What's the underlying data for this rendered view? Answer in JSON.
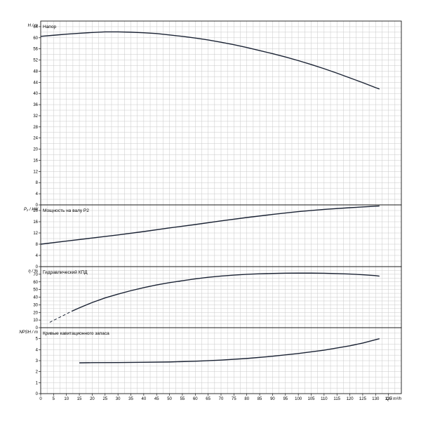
{
  "chart_data": {
    "type": "line",
    "xlabel": "Q / m³/h",
    "x_ticks": [
      0,
      5,
      10,
      15,
      20,
      25,
      30,
      35,
      40,
      45,
      50,
      55,
      60,
      65,
      70,
      75,
      80,
      85,
      90,
      95,
      100,
      105,
      110,
      115,
      120,
      125,
      130,
      135
    ],
    "xlim": [
      0,
      140
    ],
    "panels": [
      {
        "key": "head",
        "title": "Напор",
        "ylabel": "H / m",
        "ylim": [
          0,
          66
        ],
        "y_ticks": [
          0,
          4,
          8,
          12,
          16,
          20,
          24,
          28,
          32,
          36,
          40,
          44,
          48,
          52,
          56,
          60,
          64
        ],
        "dashed": false,
        "points": [
          [
            0,
            60.5
          ],
          [
            5,
            60.9
          ],
          [
            10,
            61.3
          ],
          [
            15,
            61.6
          ],
          [
            20,
            61.9
          ],
          [
            25,
            62.1
          ],
          [
            30,
            62.1
          ],
          [
            35,
            62.0
          ],
          [
            40,
            61.8
          ],
          [
            45,
            61.5
          ],
          [
            50,
            61.0
          ],
          [
            55,
            60.5
          ],
          [
            60,
            59.9
          ],
          [
            65,
            59.2
          ],
          [
            70,
            58.4
          ],
          [
            75,
            57.5
          ],
          [
            80,
            56.5
          ],
          [
            85,
            55.4
          ],
          [
            90,
            54.3
          ],
          [
            95,
            53.1
          ],
          [
            100,
            51.8
          ],
          [
            105,
            50.4
          ],
          [
            110,
            48.9
          ],
          [
            115,
            47.3
          ],
          [
            120,
            45.6
          ],
          [
            125,
            43.9
          ],
          [
            130,
            42.1
          ],
          [
            131.5,
            41.6
          ]
        ]
      },
      {
        "key": "power",
        "title": "Мощность на валу P2",
        "ylabel": "P₂ / kW",
        "ylim": [
          0,
          22
        ],
        "y_ticks": [
          0,
          4,
          8,
          12,
          16,
          20
        ],
        "dashed": false,
        "points": [
          [
            0,
            8.0
          ],
          [
            10,
            9.1
          ],
          [
            20,
            10.2
          ],
          [
            30,
            11.3
          ],
          [
            40,
            12.5
          ],
          [
            50,
            13.8
          ],
          [
            60,
            15.0
          ],
          [
            70,
            16.3
          ],
          [
            80,
            17.5
          ],
          [
            90,
            18.6
          ],
          [
            100,
            19.6
          ],
          [
            110,
            20.4
          ],
          [
            120,
            21.0
          ],
          [
            131.5,
            21.6
          ]
        ]
      },
      {
        "key": "efficiency",
        "title": "Гидравлический КПД",
        "ylabel": "η / %",
        "ylim": [
          0,
          80
        ],
        "y_ticks": [
          0,
          10,
          20,
          30,
          40,
          50,
          60,
          70
        ],
        "dashed_until": 12,
        "points": [
          [
            3.5,
            7
          ],
          [
            7,
            13
          ],
          [
            10,
            18
          ],
          [
            12,
            21.5
          ],
          [
            15,
            26
          ],
          [
            20,
            33
          ],
          [
            25,
            39
          ],
          [
            30,
            44
          ],
          [
            35,
            48.5
          ],
          [
            40,
            52.5
          ],
          [
            45,
            56
          ],
          [
            50,
            59
          ],
          [
            55,
            61.5
          ],
          [
            60,
            64
          ],
          [
            65,
            66
          ],
          [
            70,
            67.6
          ],
          [
            75,
            68.9
          ],
          [
            80,
            69.9
          ],
          [
            85,
            70.6
          ],
          [
            90,
            71.1
          ],
          [
            95,
            71.4
          ],
          [
            100,
            71.5
          ],
          [
            105,
            71.5
          ],
          [
            110,
            71.3
          ],
          [
            115,
            70.9
          ],
          [
            120,
            70.3
          ],
          [
            125,
            69.4
          ],
          [
            130,
            68.2
          ],
          [
            131.5,
            67.5
          ]
        ]
      },
      {
        "key": "npsh",
        "title": "Кривые кавитационного запаса",
        "ylabel": "NPSH / m",
        "ylim": [
          0,
          6
        ],
        "y_ticks": [
          0,
          1,
          2,
          3,
          4,
          5
        ],
        "dashed": false,
        "points": [
          [
            15,
            2.8
          ],
          [
            20,
            2.82
          ],
          [
            30,
            2.83
          ],
          [
            40,
            2.85
          ],
          [
            50,
            2.88
          ],
          [
            60,
            2.95
          ],
          [
            70,
            3.05
          ],
          [
            80,
            3.2
          ],
          [
            90,
            3.4
          ],
          [
            100,
            3.65
          ],
          [
            110,
            3.95
          ],
          [
            120,
            4.35
          ],
          [
            125,
            4.6
          ],
          [
            131.5,
            5.0
          ]
        ]
      }
    ]
  }
}
